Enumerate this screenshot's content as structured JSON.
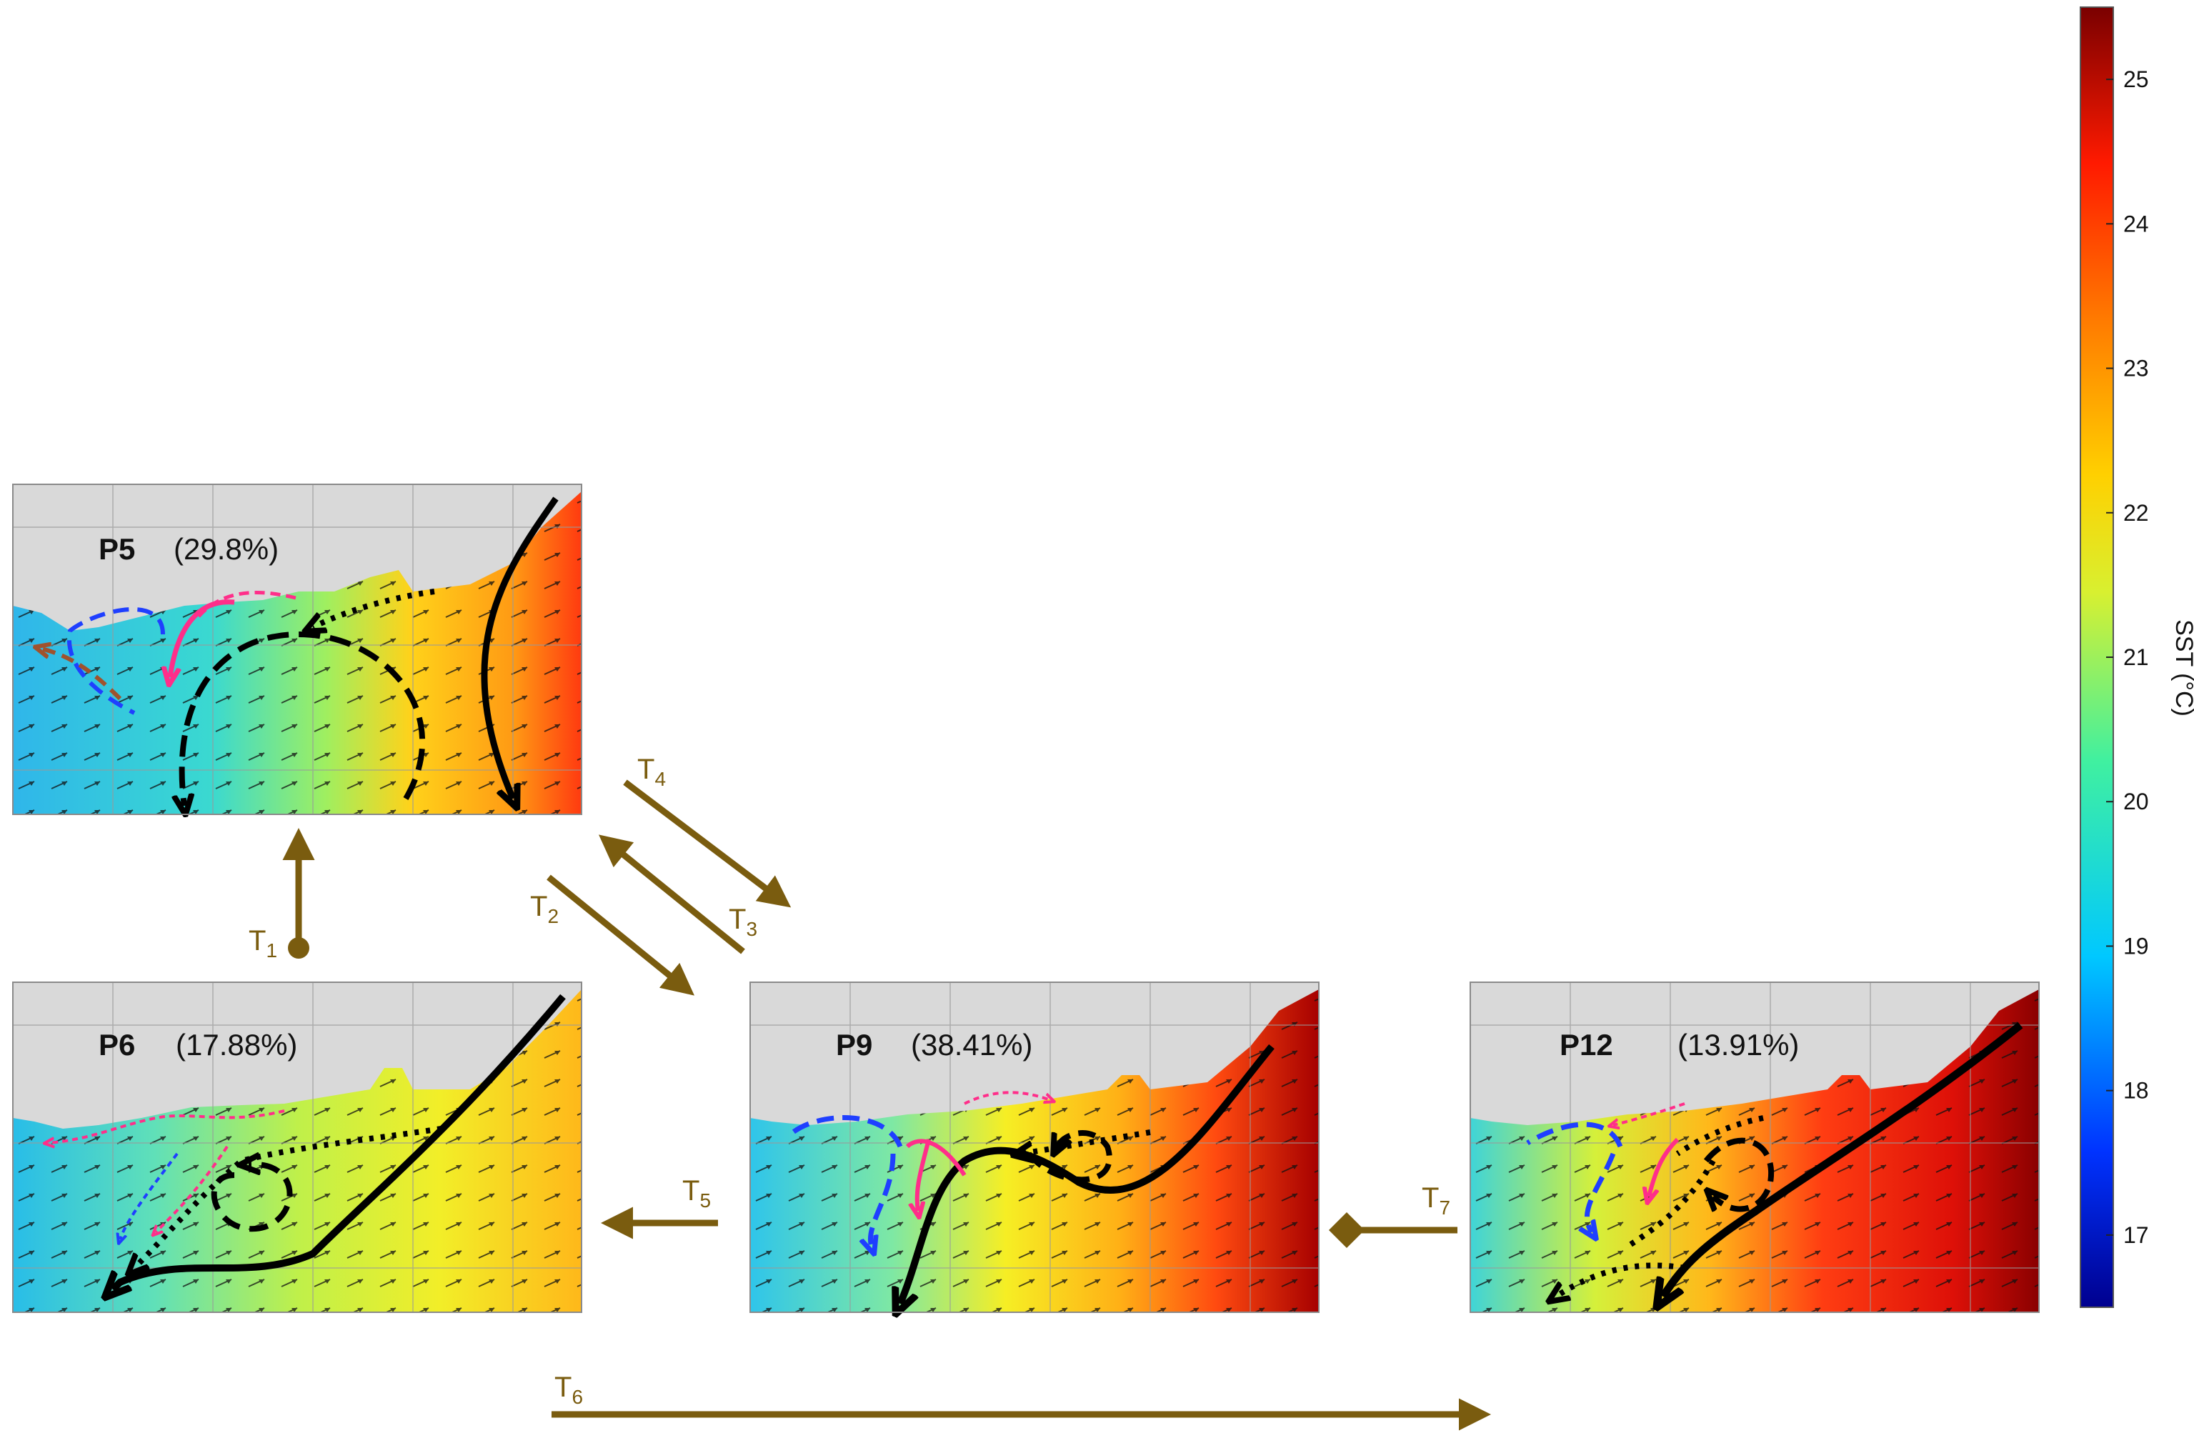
{
  "panels": [
    {
      "id": "P5",
      "label": "P5",
      "percent": "(29.8%)"
    },
    {
      "id": "P6",
      "label": "P6",
      "percent": "(17.88%)"
    },
    {
      "id": "P9",
      "label": "P9",
      "percent": "(38.41%)"
    },
    {
      "id": "P12",
      "label": "P12",
      "percent": "(13.91%)"
    }
  ],
  "transitions": [
    {
      "id": "T1",
      "base": "T",
      "sub": "1",
      "from": "P6",
      "to": "P5"
    },
    {
      "id": "T2",
      "base": "T",
      "sub": "2",
      "from": "P5",
      "to": "P9"
    },
    {
      "id": "T3",
      "base": "T",
      "sub": "3",
      "from": "P9",
      "to": "P5"
    },
    {
      "id": "T4",
      "base": "T",
      "sub": "4",
      "from": "P5",
      "to": "P9"
    },
    {
      "id": "T5",
      "base": "T",
      "sub": "5",
      "from": "P9",
      "to": "P6"
    },
    {
      "id": "T6",
      "base": "T",
      "sub": "6",
      "from": "P6",
      "to": "P12"
    },
    {
      "id": "T7",
      "base": "T",
      "sub": "7",
      "from": "P12",
      "to": "P9"
    }
  ],
  "colorbar": {
    "label": "SST (°C)",
    "min": 16.5,
    "max": 25.5,
    "ticks": [
      "17",
      "18",
      "19",
      "20",
      "21",
      "22",
      "23",
      "24",
      "25"
    ]
  },
  "colors": {
    "arrow": "#7a5c0f",
    "land": "#d9d9d9",
    "current_black": "#000000",
    "current_blue": "#1f3fff",
    "current_pink": "#ff2e8a",
    "current_brown": "#a0522d"
  }
}
